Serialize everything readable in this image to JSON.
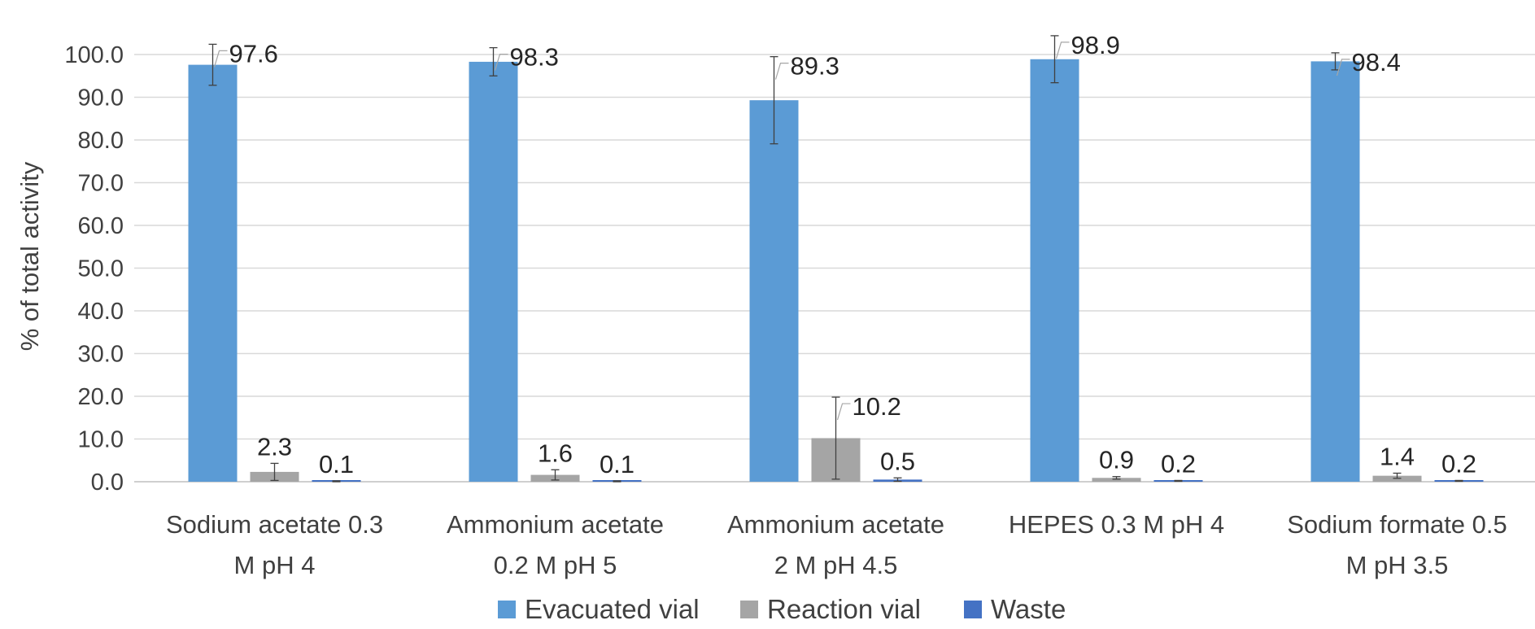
{
  "chart_data": {
    "type": "bar",
    "ylabel": "% of total activity",
    "ylim": [
      0,
      100
    ],
    "yticks": [
      "0.0",
      "10.0",
      "20.0",
      "30.0",
      "40.0",
      "50.0",
      "60.0",
      "70.0",
      "80.0",
      "90.0",
      "100.0"
    ],
    "grid": true,
    "legend_position": "bottom",
    "categories": [
      [
        "Sodium acetate 0.3",
        "M pH 4"
      ],
      [
        "Ammonium acetate",
        "0.2 M pH 5"
      ],
      [
        "Ammonium acetate",
        "2 M pH 4.5"
      ],
      [
        "HEPES 0.3 M pH 4"
      ],
      [
        "Sodium formate 0.5",
        "M pH 3.5"
      ]
    ],
    "series": [
      {
        "name": "Evacuated vial",
        "color": "#5B9BD5",
        "values": [
          97.6,
          98.3,
          89.3,
          98.9,
          98.4
        ],
        "labels": [
          "97.6",
          "98.3",
          "89.3",
          "98.9",
          "98.4"
        ],
        "error": [
          4.8,
          3.3,
          10.2,
          5.5,
          2.0
        ]
      },
      {
        "name": "Reaction vial",
        "color": "#A5A5A5",
        "values": [
          2.3,
          1.6,
          10.2,
          0.9,
          1.4
        ],
        "labels": [
          "2.3",
          "1.6",
          "10.2",
          "0.9",
          "1.4"
        ],
        "error": [
          2.0,
          1.2,
          9.6,
          0.3,
          0.6
        ]
      },
      {
        "name": "Waste",
        "color": "#4472C4",
        "values": [
          0.1,
          0.1,
          0.5,
          0.2,
          0.2
        ],
        "labels": [
          "0.1",
          "0.1",
          "0.5",
          "0.2",
          "0.2"
        ],
        "error": [
          0.1,
          0.1,
          0.4,
          0.1,
          0.1
        ]
      }
    ]
  }
}
